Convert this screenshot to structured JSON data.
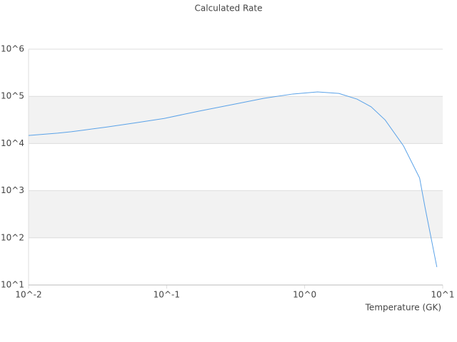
{
  "chart_data": {
    "type": "line",
    "title": "Calculated Rate",
    "x_label": "Temperature (GK)",
    "x": [
      0.01,
      0.0162,
      0.0204,
      0.0259,
      0.037,
      0.0596,
      0.096,
      0.174,
      0.316,
      0.51,
      0.82,
      1.24,
      1.77,
      2.4,
      3.03,
      3.83,
      5.2,
      6.8,
      7.43,
      9.07
    ],
    "values": [
      14800,
      16600,
      17800,
      19500,
      22400,
      27500,
      34000,
      49000,
      69000,
      91000,
      112000,
      124000,
      115000,
      87000,
      60000,
      31500,
      8900,
      1860,
      457,
      24
    ],
    "color": "#5aa2e8",
    "xlog": true,
    "ylog": true,
    "grid": true,
    "xlim": [
      0.01,
      10
    ],
    "ylim": [
      10,
      1000000
    ],
    "xticks": [
      {
        "value": 0.01,
        "label": "10^-2"
      },
      {
        "value": 0.1,
        "label": "10^-1"
      },
      {
        "value": 1,
        "label": "10^0"
      },
      {
        "value": 10,
        "label": "10^1"
      }
    ],
    "yticks": [
      {
        "value": 10,
        "label": "10^1"
      },
      {
        "value": 100,
        "label": "10^2"
      },
      {
        "value": 1000,
        "label": "10^3"
      },
      {
        "value": 10000,
        "label": "10^4"
      },
      {
        "value": 100000,
        "label": "10^5"
      },
      {
        "value": 1000000,
        "label": "10^6"
      }
    ]
  }
}
